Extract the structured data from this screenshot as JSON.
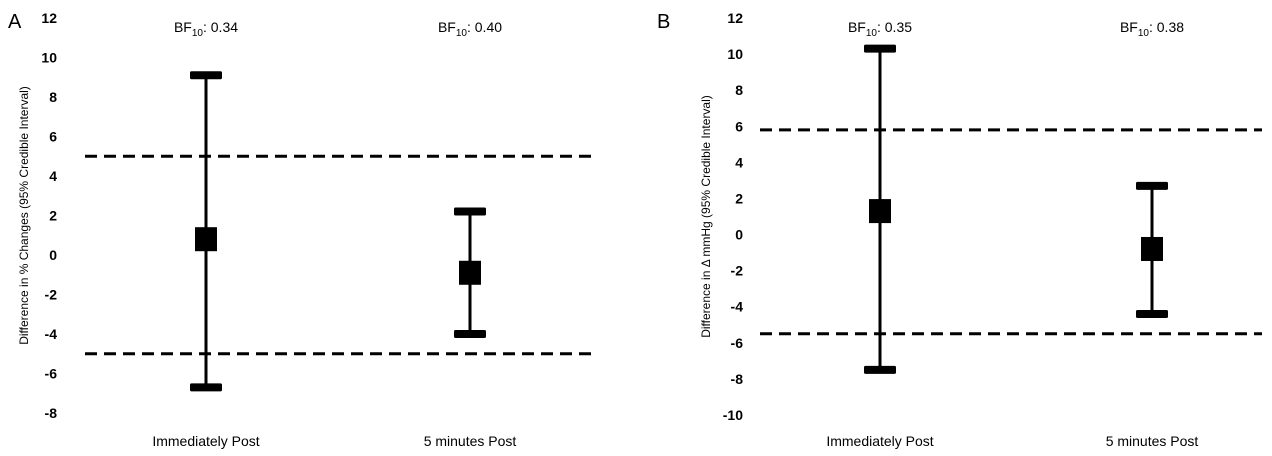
{
  "chart_data": [
    {
      "type": "errorbar",
      "panel_label": "A",
      "ylabel": "Difference in % Changes (95% Credible Interval)",
      "ylim": [
        -8,
        12
      ],
      "yticks": [
        -8,
        -6,
        -4,
        -2,
        0,
        2,
        4,
        6,
        8,
        10,
        12
      ],
      "categories": [
        "Immediately Post",
        "5 minutes Post"
      ],
      "points": [
        {
          "category": "Immediately Post",
          "estimate": 0.8,
          "lower": -6.7,
          "upper": 9.1,
          "bf_prefix": "BF",
          "bf_sub": "10",
          "bf_value": ": 0.34"
        },
        {
          "category": "5 minutes Post",
          "estimate": -0.9,
          "lower": -4.0,
          "upper": 2.2,
          "bf_prefix": "BF",
          "bf_sub": "10",
          "bf_value": ": 0.40"
        }
      ],
      "reference_lines": [
        5,
        -5
      ]
    },
    {
      "type": "errorbar",
      "panel_label": "B",
      "ylabel": "Difference in Δ mmHg (95% Credible Interval)",
      "ylim": [
        -10,
        12
      ],
      "yticks": [
        -10,
        -8,
        -6,
        -4,
        -2,
        0,
        2,
        4,
        6,
        8,
        10,
        12
      ],
      "categories": [
        "Immediately Post",
        "5 minutes Post"
      ],
      "points": [
        {
          "category": "Immediately Post",
          "estimate": 1.3,
          "lower": -7.5,
          "upper": 10.3,
          "bf_prefix": "BF",
          "bf_sub": "10",
          "bf_value": ": 0.35"
        },
        {
          "category": "5 minutes Post",
          "estimate": -0.8,
          "lower": -4.4,
          "upper": 2.7,
          "bf_prefix": "BF",
          "bf_sub": "10",
          "bf_value": ": 0.38"
        }
      ],
      "reference_lines": [
        5.8,
        -5.5
      ]
    }
  ]
}
